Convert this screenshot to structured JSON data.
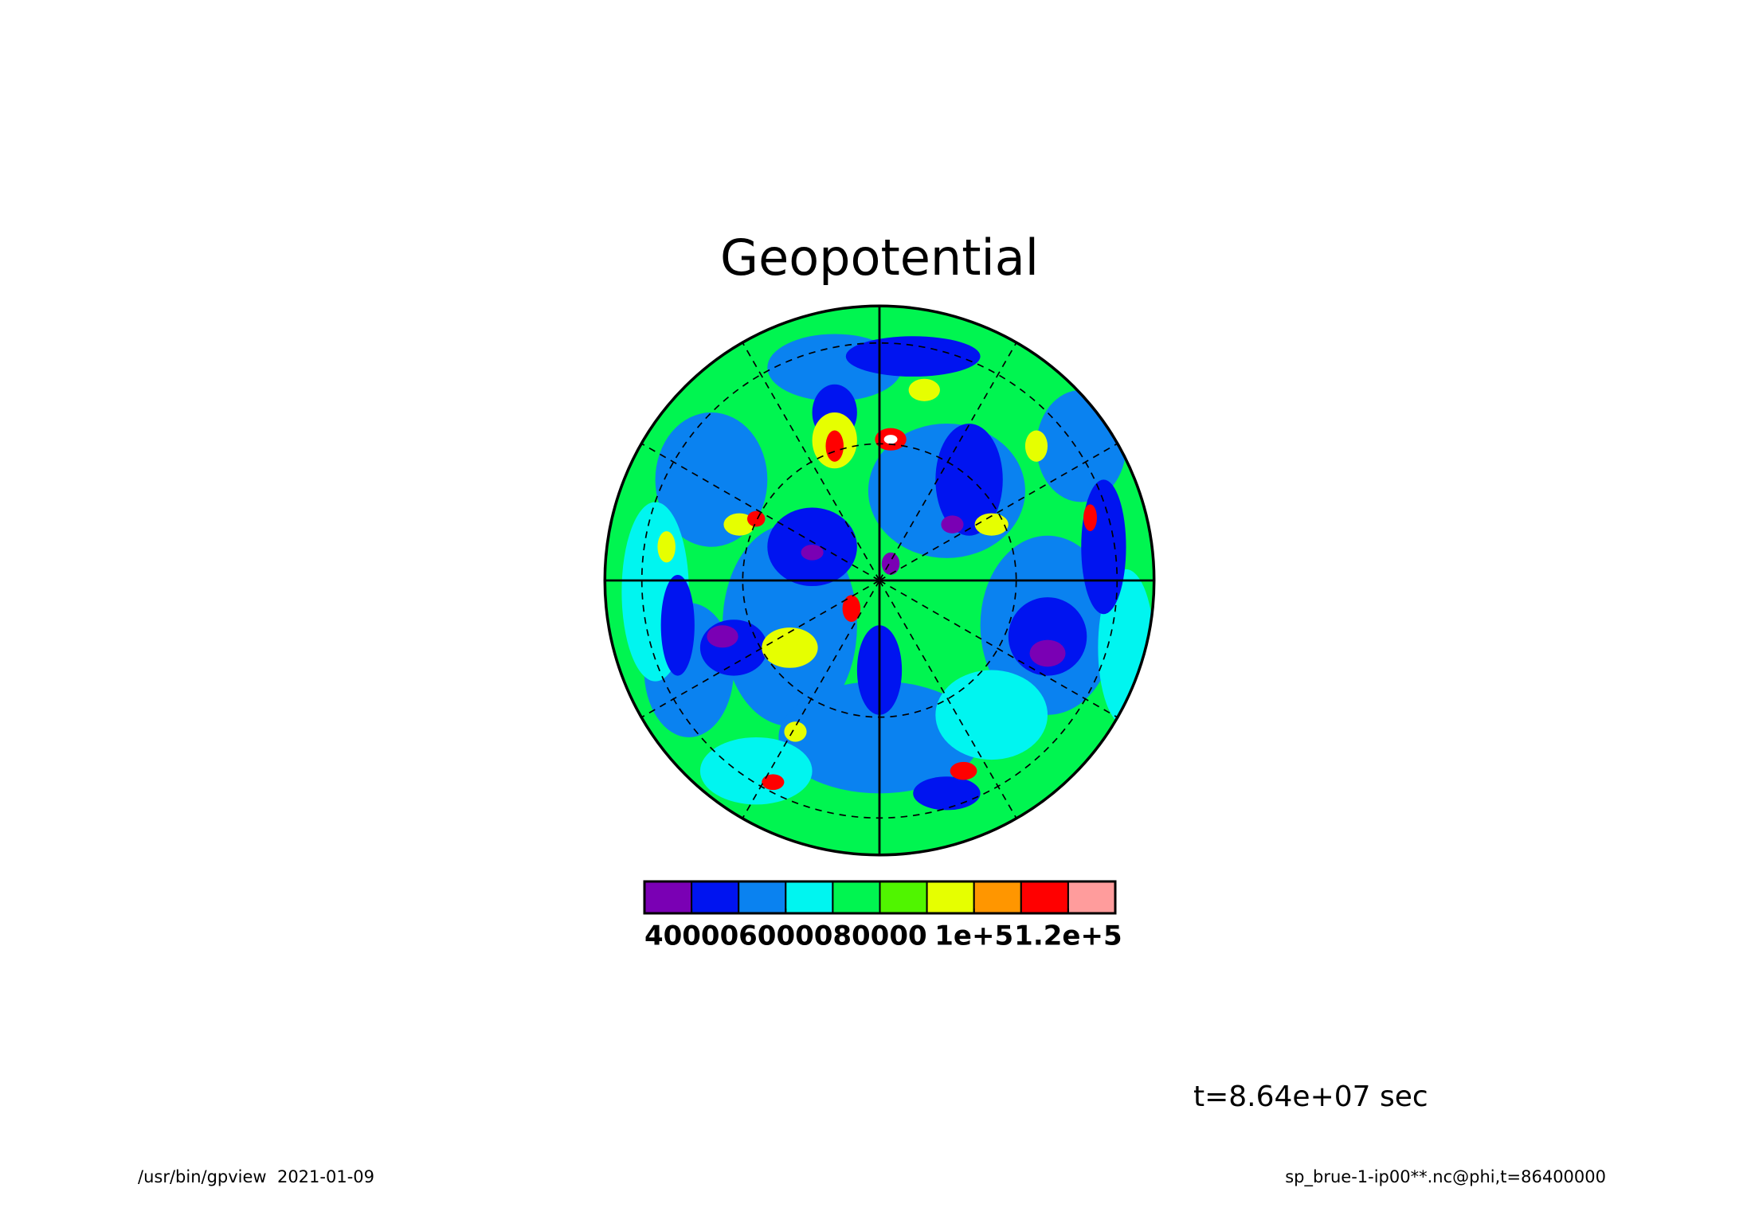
{
  "chart_data": {
    "type": "colorbar",
    "title": "Geopotential",
    "colors": [
      "#7a00b4",
      "#0014f0",
      "#0a82f0",
      "#00f5f0",
      "#00f550",
      "#50f500",
      "#e6ff00",
      "#ff9600",
      "#ff0000",
      "#ff9c9c"
    ],
    "xlim": [
      30000,
      130000
    ],
    "xticks": [
      40000,
      60000,
      80000,
      {
        "value": 100000,
        "label": "1e+5"
      },
      {
        "value": 120000,
        "label": "1.2e+5"
      }
    ],
    "time_label": "t=8.64e+07 sec",
    "footer_left": "/usr/bin/gpview  2021-01-09",
    "footer_right": "sp_brue-1-ip00**.nc@phi,t=86400000"
  }
}
